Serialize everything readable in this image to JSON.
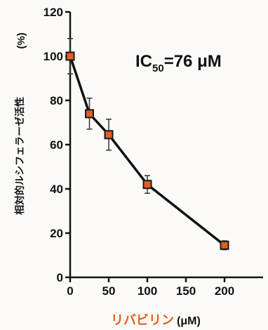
{
  "chart_data": {
    "type": "line",
    "x": [
      0,
      25,
      50,
      100,
      200
    ],
    "series": [
      {
        "values": [
          100,
          74,
          64.5,
          42,
          14.5
        ],
        "error": [
          8,
          7,
          7,
          4,
          2
        ],
        "color": "#111111",
        "marker_color": "#e06020"
      }
    ],
    "xlim": [
      0,
      250
    ],
    "ylim": [
      0,
      120
    ],
    "xticks": [
      "0",
      "50",
      "100",
      "150",
      "200"
    ],
    "yticks": [
      "0",
      "20",
      "40",
      "60",
      "80",
      "100",
      "120"
    ],
    "ylabel": "相対的ルシフェラーゼ活性",
    "ylabel_unit": "(%)",
    "xlabel": "リバビリン",
    "xlabel_unit": "(μM)",
    "xlabel_color": "#e06020",
    "annotation": {
      "prefix": "IC",
      "subscript": "50",
      "suffix": "=76 μM"
    },
    "grid": false
  }
}
